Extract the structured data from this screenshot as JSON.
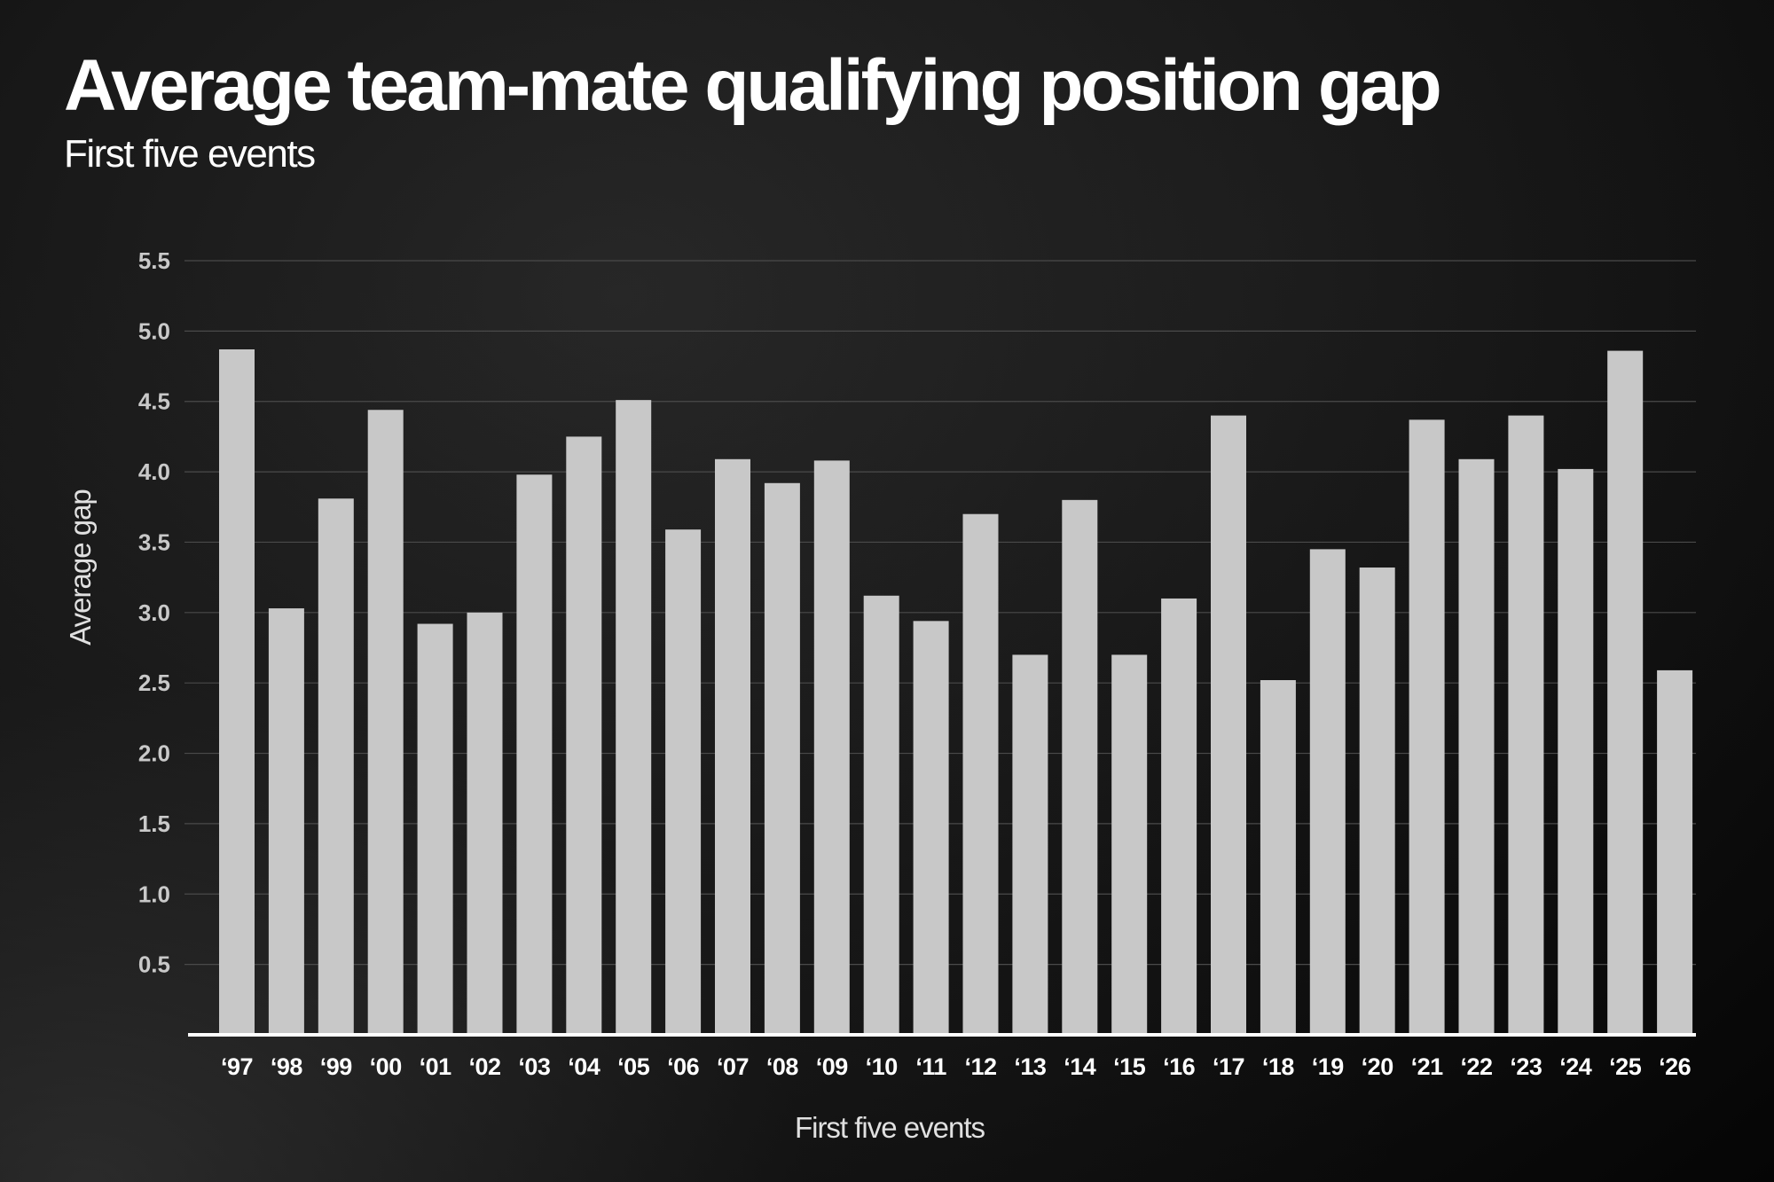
{
  "chart_data": {
    "type": "bar",
    "title": "Average team-mate qualifying position gap",
    "subtitle": "First five events",
    "xlabel": "First five events",
    "ylabel": "Average gap",
    "categories": [
      "‘97",
      "‘98",
      "‘99",
      "‘00",
      "‘01",
      "‘02",
      "‘03",
      "‘04",
      "‘05",
      "‘06",
      "‘07",
      "‘08",
      "‘09",
      "‘10",
      "‘11",
      "‘12",
      "‘13",
      "‘14",
      "‘15",
      "‘16",
      "‘17",
      "‘18",
      "‘19",
      "‘20",
      "‘21",
      "‘22",
      "‘23",
      "‘24",
      "‘25",
      "‘26"
    ],
    "values": [
      4.87,
      3.03,
      3.81,
      4.44,
      2.92,
      3.0,
      3.98,
      4.25,
      4.51,
      3.59,
      4.09,
      3.92,
      4.08,
      3.12,
      2.94,
      3.7,
      2.7,
      3.8,
      2.7,
      3.1,
      4.4,
      2.52,
      3.45,
      3.32,
      4.37,
      4.09,
      4.4,
      4.02,
      4.86,
      2.59
    ],
    "ylim": [
      0,
      5.5
    ],
    "yticks": [
      "0.5",
      "1.0",
      "1.5",
      "2.0",
      "2.5",
      "3.0",
      "3.5",
      "4.0",
      "4.5",
      "5.0",
      "5.5"
    ],
    "grid": true,
    "bar_color": "#c8c8c8",
    "text_color": "#ffffff"
  }
}
